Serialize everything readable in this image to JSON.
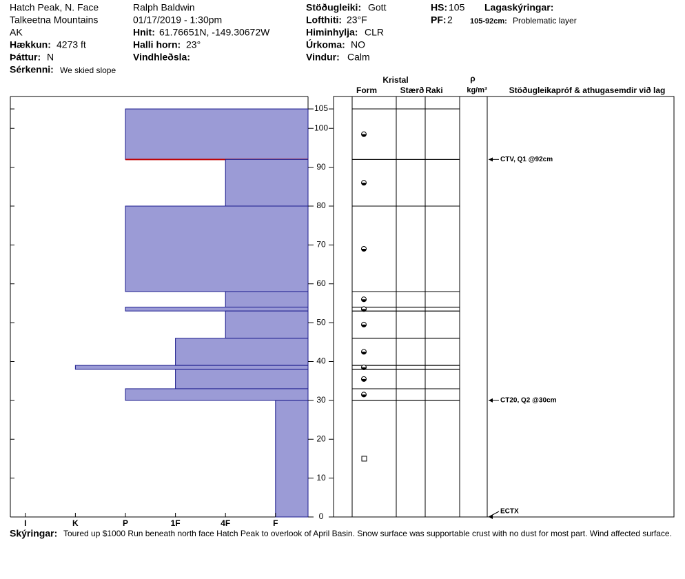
{
  "header": {
    "location": "Hatch Peak, N. Face",
    "range": "Talkeetna Mountains",
    "state": "AK",
    "elevation": {
      "label": "Hækkun:",
      "value": "4273 ft"
    },
    "aspect": {
      "label": "Þáttur:",
      "value": "N"
    },
    "feature": {
      "label": "Sérkenni:",
      "value": "We skied slope"
    },
    "observer": "Ralph Baldwin",
    "datetime": "01/17/2019 - 1:30pm",
    "coords": {
      "label": "Hnit:",
      "value": "61.76651N, -149.30672W"
    },
    "slope": {
      "label": "Halli horn:",
      "value": "23°"
    },
    "wind_loading": {
      "label": "Vindhleðsla:"
    },
    "stability": {
      "label": "Stöðugleiki:",
      "value": "Gott"
    },
    "air_temp": {
      "label": "Lofthiti:",
      "value": "23°F"
    },
    "sky": {
      "label": "Himinhylja:",
      "value": "CLR"
    },
    "precip": {
      "label": "Úrkoma:",
      "value": "NO"
    },
    "wind": {
      "label": "Vindur:",
      "value": "Calm"
    },
    "hs": {
      "label": "HS:",
      "value": 105
    },
    "pf": {
      "label": "PF:",
      "value": 2
    },
    "legend_title": "Lagaskýringar:",
    "legend_range": "105-92cm:",
    "legend_text": "Problematic layer"
  },
  "columns": {
    "crystal": "Kristal",
    "form": "Form",
    "size": "Stærð",
    "moisture": "Raki",
    "rho": "ρ",
    "density": "kg/m³",
    "tests": "Stöðugleikapróf & athugasemdir við lag"
  },
  "chart_data": {
    "type": "hardness-profile",
    "xlim": [
      6.3,
      0.35
    ],
    "xticks": [
      {
        "value": 6,
        "label": "I"
      },
      {
        "value": 5,
        "label": "K"
      },
      {
        "value": 4,
        "label": "P"
      },
      {
        "value": 3,
        "label": "1F"
      },
      {
        "value": 2,
        "label": "4F"
      },
      {
        "value": 1,
        "label": "F"
      }
    ],
    "ylim": [
      0,
      108.2
    ],
    "yticks": [
      0,
      10,
      20,
      30,
      40,
      50,
      60,
      70,
      80,
      90,
      100,
      105
    ],
    "color": "#9b9bd6",
    "layers": [
      {
        "top": 105,
        "bottom": 92,
        "hardness": 4,
        "problematic": true
      },
      {
        "top": 92,
        "bottom": 80,
        "hardness": 2
      },
      {
        "top": 80,
        "bottom": 58,
        "hardness": 4
      },
      {
        "top": 58,
        "bottom": 54,
        "hardness": 2
      },
      {
        "top": 54,
        "bottom": 53,
        "hardness": 4
      },
      {
        "top": 53,
        "bottom": 46,
        "hardness": 2
      },
      {
        "top": 46,
        "bottom": 39,
        "hardness": 3
      },
      {
        "top": 39,
        "bottom": 38,
        "hardness": 5
      },
      {
        "top": 38,
        "bottom": 33,
        "hardness": 3
      },
      {
        "top": 33,
        "bottom": 30,
        "hardness": 4
      },
      {
        "top": 30,
        "bottom": 0,
        "hardness": 1
      }
    ],
    "tests": [
      {
        "label": "CTV, Q1 @92cm",
        "depth": 92
      },
      {
        "label": "CT20, Q2 @30cm",
        "depth": 30
      },
      {
        "label": "ECTX",
        "depth": 0
      }
    ]
  },
  "footer": {
    "label": "Skýringar:",
    "text": "Toured up $1000 Run beneath north face Hatch Peak to overlook of April Basin. Snow surface was supportable crust with no dust for most part. Wind affected surface."
  }
}
